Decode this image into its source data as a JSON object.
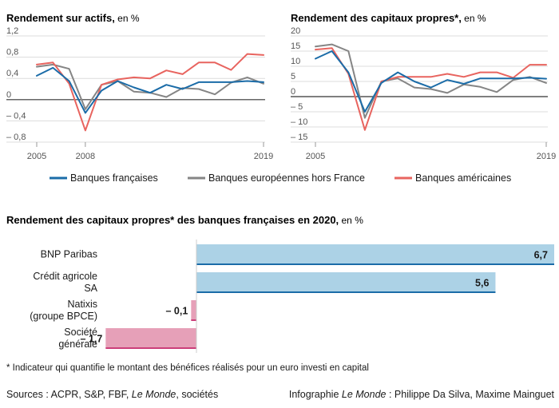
{
  "colors": {
    "fr": "#1b6ca8",
    "eu": "#858585",
    "us": "#e8645f",
    "bar_pos": "#acd2e6",
    "bar_pos_line": "#1b6ca8",
    "bar_neg": "#e6a0b8",
    "bar_neg_line": "#cc3f7a",
    "grid": "#dcdcdc",
    "zero": "#333333"
  },
  "legend": [
    {
      "key": "fr",
      "label": "Banques françaises"
    },
    {
      "key": "eu",
      "label": "Banques européennes hors France"
    },
    {
      "key": "us",
      "label": "Banques américaines"
    }
  ],
  "footnote": "* Indicateur qui quantifie le montant des bénéfices réalisés pour un euro investi en capital",
  "credits": {
    "sources_prefix": "Sources : ACPR, S&P, FBF, ",
    "sources_italic": "Le Monde",
    "sources_suffix": ", sociétés",
    "info_prefix": "Infographie ",
    "info_italic": "Le Monde",
    "info_suffix": " : Philippe Da Silva, Maxime Mainguet"
  },
  "chart_data": [
    {
      "type": "line",
      "title": "Rendement sur actifs,",
      "unit": " en %",
      "x": [
        2005,
        2006,
        2007,
        2008,
        2009,
        2010,
        2011,
        2012,
        2013,
        2014,
        2015,
        2016,
        2017,
        2018,
        2019
      ],
      "x_tick_labels": [
        {
          "x": 2005,
          "label": "2005"
        },
        {
          "x": 2008,
          "label": "2008"
        },
        {
          "x": 2019,
          "label": "2019"
        }
      ],
      "y_tick_labels": [
        {
          "y": 1.2,
          "label": "1,2"
        },
        {
          "y": 0.8,
          "label": "0,8"
        },
        {
          "y": 0.4,
          "label": "0,4"
        },
        {
          "y": 0,
          "label": "0"
        },
        {
          "y": -0.4,
          "label": "– 0,4"
        },
        {
          "y": -0.8,
          "label": "– 0,8"
        }
      ],
      "ylim": [
        -0.8,
        1.2
      ],
      "xlim": [
        2005,
        2019
      ],
      "series": [
        {
          "key": "fr",
          "values": [
            0.45,
            0.6,
            0.35,
            -0.25,
            0.17,
            0.35,
            0.23,
            0.13,
            0.28,
            0.2,
            0.33,
            0.33,
            0.33,
            0.35,
            0.33
          ]
        },
        {
          "key": "eu",
          "values": [
            0.62,
            0.66,
            0.58,
            -0.18,
            0.28,
            0.35,
            0.15,
            0.13,
            0.05,
            0.22,
            0.2,
            0.1,
            0.32,
            0.42,
            0.3
          ]
        },
        {
          "key": "us",
          "values": [
            0.66,
            0.7,
            0.3,
            -0.58,
            0.28,
            0.38,
            0.42,
            0.4,
            0.55,
            0.48,
            0.7,
            0.7,
            0.56,
            0.86,
            0.84
          ]
        }
      ]
    },
    {
      "type": "line",
      "title": "Rendement des capitaux propres*,",
      "unit": " en %",
      "x": [
        2005,
        2006,
        2007,
        2008,
        2009,
        2010,
        2011,
        2012,
        2013,
        2014,
        2015,
        2016,
        2017,
        2018,
        2019
      ],
      "x_tick_labels": [
        {
          "x": 2005,
          "label": "2005"
        },
        {
          "x": 2019,
          "label": "2019"
        }
      ],
      "y_tick_labels": [
        {
          "y": 20,
          "label": "20"
        },
        {
          "y": 15,
          "label": "15"
        },
        {
          "y": 10,
          "label": "10"
        },
        {
          "y": 5,
          "label": "5"
        },
        {
          "y": 0,
          "label": "0"
        },
        {
          "y": -5,
          "label": "– 5"
        },
        {
          "y": -10,
          "label": "– 10"
        },
        {
          "y": -15,
          "label": "– 15"
        }
      ],
      "ylim": [
        -15,
        20
      ],
      "xlim": [
        2005,
        2019
      ],
      "series": [
        {
          "key": "fr",
          "values": [
            12.5,
            15,
            8,
            -5,
            4.5,
            8,
            5,
            3,
            5.5,
            4.2,
            6,
            6,
            6,
            6.2,
            5.9
          ]
        },
        {
          "key": "eu",
          "values": [
            16.5,
            17.2,
            15,
            -7,
            5,
            6,
            3,
            2.5,
            1.2,
            4,
            3.2,
            1.5,
            5.5,
            6.5,
            4.5
          ]
        },
        {
          "key": "us",
          "values": [
            15.5,
            16,
            7.5,
            -11,
            5,
            6.5,
            6.5,
            6.5,
            7.5,
            6.5,
            8,
            8,
            6.2,
            10.5,
            10.5
          ]
        }
      ]
    },
    {
      "type": "bar",
      "orientation": "horizontal",
      "title": "Rendement des capitaux propres* des banques françaises en 2020,",
      "unit": " en %",
      "categories": [
        [
          "BNP Paribas"
        ],
        [
          "Crédit agricole",
          "SA"
        ],
        [
          "Natixis",
          "(groupe BPCE)"
        ],
        [
          "Société",
          "générale"
        ]
      ],
      "values": [
        6.7,
        5.6,
        -0.1,
        -1.7
      ],
      "value_labels": [
        "6,7",
        "5,6",
        "– 0,1",
        "– 1,7"
      ],
      "xlim": [
        -1.7,
        6.7
      ]
    }
  ]
}
